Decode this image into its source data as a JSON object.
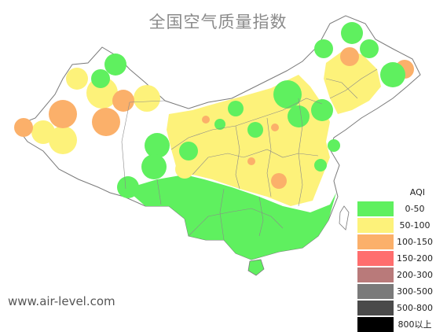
{
  "map": {
    "title": "全国空气质量指数",
    "watermark": "www.air-level.com",
    "colors": {
      "land": "#ffffff",
      "border": "#7a7a7a",
      "good": "#5ff05f",
      "moderate": "#fdf27a",
      "sensitive": "#fbb06a"
    }
  },
  "legend": {
    "title": "AQI",
    "items": [
      {
        "label": "0-50",
        "color": "#5ff05f"
      },
      {
        "label": "50-100",
        "color": "#fdf27a"
      },
      {
        "label": "100-150",
        "color": "#fbb06a"
      },
      {
        "label": "150-200",
        "color": "#ff6e6e"
      },
      {
        "label": "200-300",
        "color": "#b97a7a"
      },
      {
        "label": "300-500",
        "color": "#7a7a7a"
      },
      {
        "label": "500-800",
        "color": "#4a4a4a"
      },
      {
        "label": "800以上",
        "color": "#000000"
      }
    ]
  }
}
